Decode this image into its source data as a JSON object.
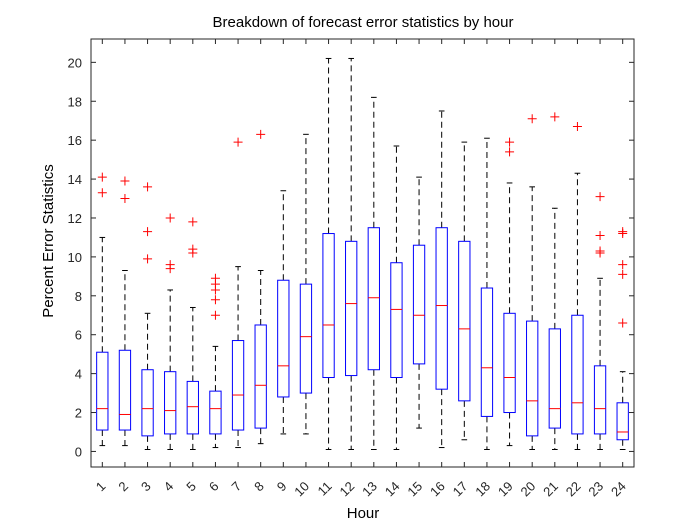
{
  "chart_data": {
    "type": "box",
    "title": "Breakdown of forecast error statistics by hour",
    "xlabel": "Hour",
    "ylabel": "Percent Error Statistics",
    "ylim": [
      -0.8,
      21.2
    ],
    "yticks": [
      0,
      2,
      4,
      6,
      8,
      10,
      12,
      14,
      16,
      18,
      20
    ],
    "categories": [
      "1",
      "2",
      "3",
      "4",
      "5",
      "6",
      "7",
      "8",
      "9",
      "10",
      "11",
      "12",
      "13",
      "14",
      "15",
      "16",
      "17",
      "18",
      "19",
      "20",
      "21",
      "22",
      "23",
      "24"
    ],
    "grid": false,
    "colors": {
      "box": "#0000ff",
      "median": "#ff0000",
      "whisker": "#000000",
      "outlier": "#ff0000",
      "axis": "#262626"
    },
    "boxes": [
      {
        "q1": 1.1,
        "median": 2.2,
        "q3": 5.1,
        "lower": 0.3,
        "upper": 11.0,
        "outliers": [
          13.3,
          14.1
        ]
      },
      {
        "q1": 1.1,
        "median": 1.9,
        "q3": 5.2,
        "lower": 0.3,
        "upper": 9.3,
        "outliers": [
          13.0,
          13.9
        ]
      },
      {
        "q1": 0.8,
        "median": 2.2,
        "q3": 4.2,
        "lower": 0.1,
        "upper": 7.1,
        "outliers": [
          9.9,
          11.3,
          13.6
        ]
      },
      {
        "q1": 0.9,
        "median": 2.1,
        "q3": 4.1,
        "lower": 0.1,
        "upper": 8.3,
        "outliers": [
          9.4,
          9.6,
          12.0
        ]
      },
      {
        "q1": 0.9,
        "median": 2.3,
        "q3": 3.6,
        "lower": 0.1,
        "upper": 7.4,
        "outliers": [
          10.2,
          10.4,
          11.8
        ]
      },
      {
        "q1": 0.9,
        "median": 2.2,
        "q3": 3.1,
        "lower": 0.2,
        "upper": 5.4,
        "outliers": [
          7.0,
          7.8,
          8.3,
          8.6,
          8.9
        ]
      },
      {
        "q1": 1.1,
        "median": 2.9,
        "q3": 5.7,
        "lower": 0.2,
        "upper": 9.5,
        "outliers": [
          15.9
        ]
      },
      {
        "q1": 1.2,
        "median": 3.4,
        "q3": 6.5,
        "lower": 0.4,
        "upper": 9.3,
        "outliers": [
          16.3
        ]
      },
      {
        "q1": 2.8,
        "median": 4.4,
        "q3": 8.8,
        "lower": 0.9,
        "upper": 13.4,
        "outliers": []
      },
      {
        "q1": 3.0,
        "median": 5.9,
        "q3": 8.6,
        "lower": 0.9,
        "upper": 16.3,
        "outliers": []
      },
      {
        "q1": 3.8,
        "median": 6.5,
        "q3": 11.2,
        "lower": 0.1,
        "upper": 20.2,
        "outliers": []
      },
      {
        "q1": 3.9,
        "median": 7.6,
        "q3": 10.8,
        "lower": 0.1,
        "upper": 20.2,
        "outliers": []
      },
      {
        "q1": 4.2,
        "median": 7.9,
        "q3": 11.5,
        "lower": 0.1,
        "upper": 18.2,
        "outliers": []
      },
      {
        "q1": 3.8,
        "median": 7.3,
        "q3": 9.7,
        "lower": 0.1,
        "upper": 15.7,
        "outliers": []
      },
      {
        "q1": 4.5,
        "median": 7.0,
        "q3": 10.6,
        "lower": 1.2,
        "upper": 14.1,
        "outliers": []
      },
      {
        "q1": 3.2,
        "median": 7.5,
        "q3": 11.5,
        "lower": 0.2,
        "upper": 17.5,
        "outliers": []
      },
      {
        "q1": 2.6,
        "median": 6.3,
        "q3": 10.8,
        "lower": 0.6,
        "upper": 15.9,
        "outliers": []
      },
      {
        "q1": 1.8,
        "median": 4.3,
        "q3": 8.4,
        "lower": 0.1,
        "upper": 16.1,
        "outliers": []
      },
      {
        "q1": 2.0,
        "median": 3.8,
        "q3": 7.1,
        "lower": 0.3,
        "upper": 13.8,
        "outliers": [
          15.4,
          15.9
        ]
      },
      {
        "q1": 0.8,
        "median": 2.6,
        "q3": 6.7,
        "lower": 0.1,
        "upper": 13.6,
        "outliers": [
          17.1
        ]
      },
      {
        "q1": 1.2,
        "median": 2.2,
        "q3": 6.3,
        "lower": 0.1,
        "upper": 12.5,
        "outliers": [
          17.2
        ]
      },
      {
        "q1": 0.9,
        "median": 2.5,
        "q3": 7.0,
        "lower": 0.1,
        "upper": 14.3,
        "outliers": [
          16.7
        ]
      },
      {
        "q1": 0.9,
        "median": 2.2,
        "q3": 4.4,
        "lower": 0.1,
        "upper": 8.9,
        "outliers": [
          10.2,
          10.3,
          11.1,
          13.1
        ]
      },
      {
        "q1": 0.6,
        "median": 1.0,
        "q3": 2.5,
        "lower": 0.1,
        "upper": 4.1,
        "outliers": [
          6.6,
          9.1,
          9.6,
          11.2,
          11.3
        ]
      }
    ]
  }
}
